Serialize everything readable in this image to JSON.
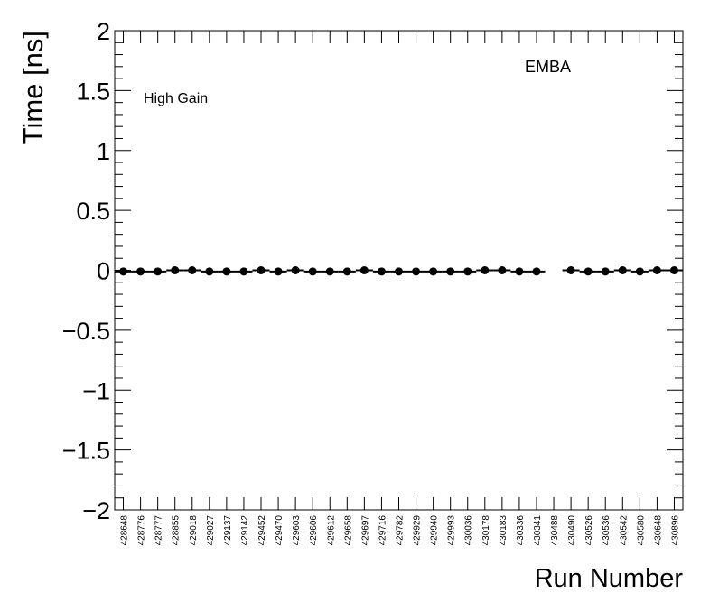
{
  "chart_data": {
    "type": "scatter",
    "title": "",
    "xlabel": "Run Number",
    "ylabel": "Time [ns]",
    "ylim": [
      -2,
      2
    ],
    "y_ticks": [
      "2",
      "1.5",
      "1",
      "0.5",
      "0",
      "−0.5",
      "−1",
      "−1.5",
      "−2"
    ],
    "grid": false,
    "annotations": [
      "EMBA",
      "High Gain"
    ],
    "categories": [
      "428648",
      "428776",
      "428777",
      "428855",
      "429018",
      "429027",
      "429137",
      "429142",
      "429452",
      "429470",
      "429603",
      "429606",
      "429612",
      "429658",
      "429697",
      "429716",
      "429782",
      "429929",
      "429940",
      "429993",
      "430036",
      "430178",
      "430183",
      "430336",
      "430341",
      "430488",
      "430490",
      "430526",
      "430536",
      "430542",
      "430580",
      "430648",
      "430896"
    ],
    "values": [
      -0.01,
      -0.01,
      -0.01,
      0.0,
      0.0,
      -0.01,
      -0.01,
      -0.01,
      0.0,
      -0.01,
      0.0,
      -0.01,
      -0.01,
      -0.01,
      0.0,
      -0.01,
      -0.01,
      -0.01,
      -0.01,
      -0.01,
      -0.01,
      0.0,
      0.0,
      -0.01,
      -0.01,
      null,
      0.0,
      -0.01,
      -0.01,
      0.0,
      -0.01,
      0.0,
      0.0
    ],
    "colors": {
      "marker": "#000000",
      "axis": "#000000",
      "background": "#ffffff"
    }
  }
}
